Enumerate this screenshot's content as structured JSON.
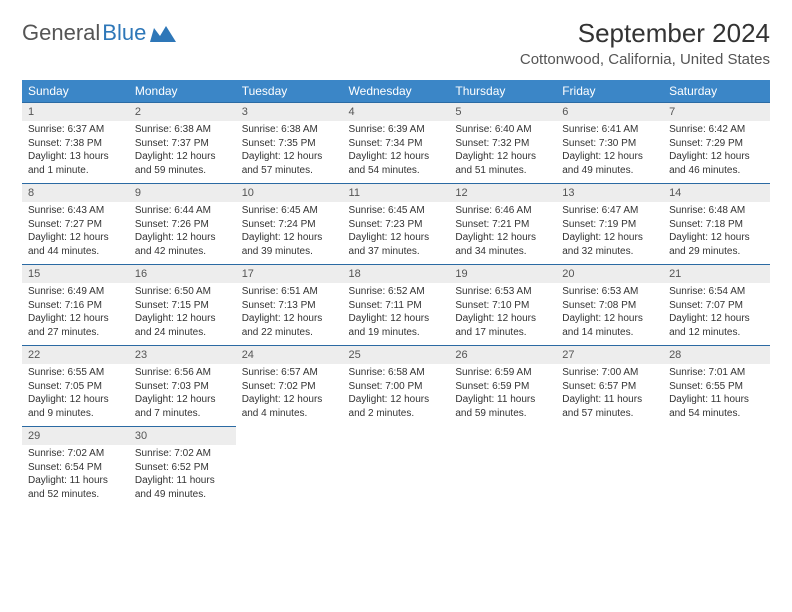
{
  "logo": {
    "text1": "General",
    "text2": "Blue"
  },
  "title": "September 2024",
  "location": "Cottonwood, California, United States",
  "colors": {
    "header_bg": "#3b86c7",
    "header_text": "#ffffff",
    "daynum_bg": "#ededed",
    "daynum_border": "#2b6aa3",
    "logo_blue": "#2e77b8"
  },
  "weekdays": [
    "Sunday",
    "Monday",
    "Tuesday",
    "Wednesday",
    "Thursday",
    "Friday",
    "Saturday"
  ],
  "days": [
    {
      "n": "1",
      "sr": "Sunrise: 6:37 AM",
      "ss": "Sunset: 7:38 PM",
      "dl": "Daylight: 13 hours and 1 minute."
    },
    {
      "n": "2",
      "sr": "Sunrise: 6:38 AM",
      "ss": "Sunset: 7:37 PM",
      "dl": "Daylight: 12 hours and 59 minutes."
    },
    {
      "n": "3",
      "sr": "Sunrise: 6:38 AM",
      "ss": "Sunset: 7:35 PM",
      "dl": "Daylight: 12 hours and 57 minutes."
    },
    {
      "n": "4",
      "sr": "Sunrise: 6:39 AM",
      "ss": "Sunset: 7:34 PM",
      "dl": "Daylight: 12 hours and 54 minutes."
    },
    {
      "n": "5",
      "sr": "Sunrise: 6:40 AM",
      "ss": "Sunset: 7:32 PM",
      "dl": "Daylight: 12 hours and 51 minutes."
    },
    {
      "n": "6",
      "sr": "Sunrise: 6:41 AM",
      "ss": "Sunset: 7:30 PM",
      "dl": "Daylight: 12 hours and 49 minutes."
    },
    {
      "n": "7",
      "sr": "Sunrise: 6:42 AM",
      "ss": "Sunset: 7:29 PM",
      "dl": "Daylight: 12 hours and 46 minutes."
    },
    {
      "n": "8",
      "sr": "Sunrise: 6:43 AM",
      "ss": "Sunset: 7:27 PM",
      "dl": "Daylight: 12 hours and 44 minutes."
    },
    {
      "n": "9",
      "sr": "Sunrise: 6:44 AM",
      "ss": "Sunset: 7:26 PM",
      "dl": "Daylight: 12 hours and 42 minutes."
    },
    {
      "n": "10",
      "sr": "Sunrise: 6:45 AM",
      "ss": "Sunset: 7:24 PM",
      "dl": "Daylight: 12 hours and 39 minutes."
    },
    {
      "n": "11",
      "sr": "Sunrise: 6:45 AM",
      "ss": "Sunset: 7:23 PM",
      "dl": "Daylight: 12 hours and 37 minutes."
    },
    {
      "n": "12",
      "sr": "Sunrise: 6:46 AM",
      "ss": "Sunset: 7:21 PM",
      "dl": "Daylight: 12 hours and 34 minutes."
    },
    {
      "n": "13",
      "sr": "Sunrise: 6:47 AM",
      "ss": "Sunset: 7:19 PM",
      "dl": "Daylight: 12 hours and 32 minutes."
    },
    {
      "n": "14",
      "sr": "Sunrise: 6:48 AM",
      "ss": "Sunset: 7:18 PM",
      "dl": "Daylight: 12 hours and 29 minutes."
    },
    {
      "n": "15",
      "sr": "Sunrise: 6:49 AM",
      "ss": "Sunset: 7:16 PM",
      "dl": "Daylight: 12 hours and 27 minutes."
    },
    {
      "n": "16",
      "sr": "Sunrise: 6:50 AM",
      "ss": "Sunset: 7:15 PM",
      "dl": "Daylight: 12 hours and 24 minutes."
    },
    {
      "n": "17",
      "sr": "Sunrise: 6:51 AM",
      "ss": "Sunset: 7:13 PM",
      "dl": "Daylight: 12 hours and 22 minutes."
    },
    {
      "n": "18",
      "sr": "Sunrise: 6:52 AM",
      "ss": "Sunset: 7:11 PM",
      "dl": "Daylight: 12 hours and 19 minutes."
    },
    {
      "n": "19",
      "sr": "Sunrise: 6:53 AM",
      "ss": "Sunset: 7:10 PM",
      "dl": "Daylight: 12 hours and 17 minutes."
    },
    {
      "n": "20",
      "sr": "Sunrise: 6:53 AM",
      "ss": "Sunset: 7:08 PM",
      "dl": "Daylight: 12 hours and 14 minutes."
    },
    {
      "n": "21",
      "sr": "Sunrise: 6:54 AM",
      "ss": "Sunset: 7:07 PM",
      "dl": "Daylight: 12 hours and 12 minutes."
    },
    {
      "n": "22",
      "sr": "Sunrise: 6:55 AM",
      "ss": "Sunset: 7:05 PM",
      "dl": "Daylight: 12 hours and 9 minutes."
    },
    {
      "n": "23",
      "sr": "Sunrise: 6:56 AM",
      "ss": "Sunset: 7:03 PM",
      "dl": "Daylight: 12 hours and 7 minutes."
    },
    {
      "n": "24",
      "sr": "Sunrise: 6:57 AM",
      "ss": "Sunset: 7:02 PM",
      "dl": "Daylight: 12 hours and 4 minutes."
    },
    {
      "n": "25",
      "sr": "Sunrise: 6:58 AM",
      "ss": "Sunset: 7:00 PM",
      "dl": "Daylight: 12 hours and 2 minutes."
    },
    {
      "n": "26",
      "sr": "Sunrise: 6:59 AM",
      "ss": "Sunset: 6:59 PM",
      "dl": "Daylight: 11 hours and 59 minutes."
    },
    {
      "n": "27",
      "sr": "Sunrise: 7:00 AM",
      "ss": "Sunset: 6:57 PM",
      "dl": "Daylight: 11 hours and 57 minutes."
    },
    {
      "n": "28",
      "sr": "Sunrise: 7:01 AM",
      "ss": "Sunset: 6:55 PM",
      "dl": "Daylight: 11 hours and 54 minutes."
    },
    {
      "n": "29",
      "sr": "Sunrise: 7:02 AM",
      "ss": "Sunset: 6:54 PM",
      "dl": "Daylight: 11 hours and 52 minutes."
    },
    {
      "n": "30",
      "sr": "Sunrise: 7:02 AM",
      "ss": "Sunset: 6:52 PM",
      "dl": "Daylight: 11 hours and 49 minutes."
    }
  ],
  "start_offset": 0
}
